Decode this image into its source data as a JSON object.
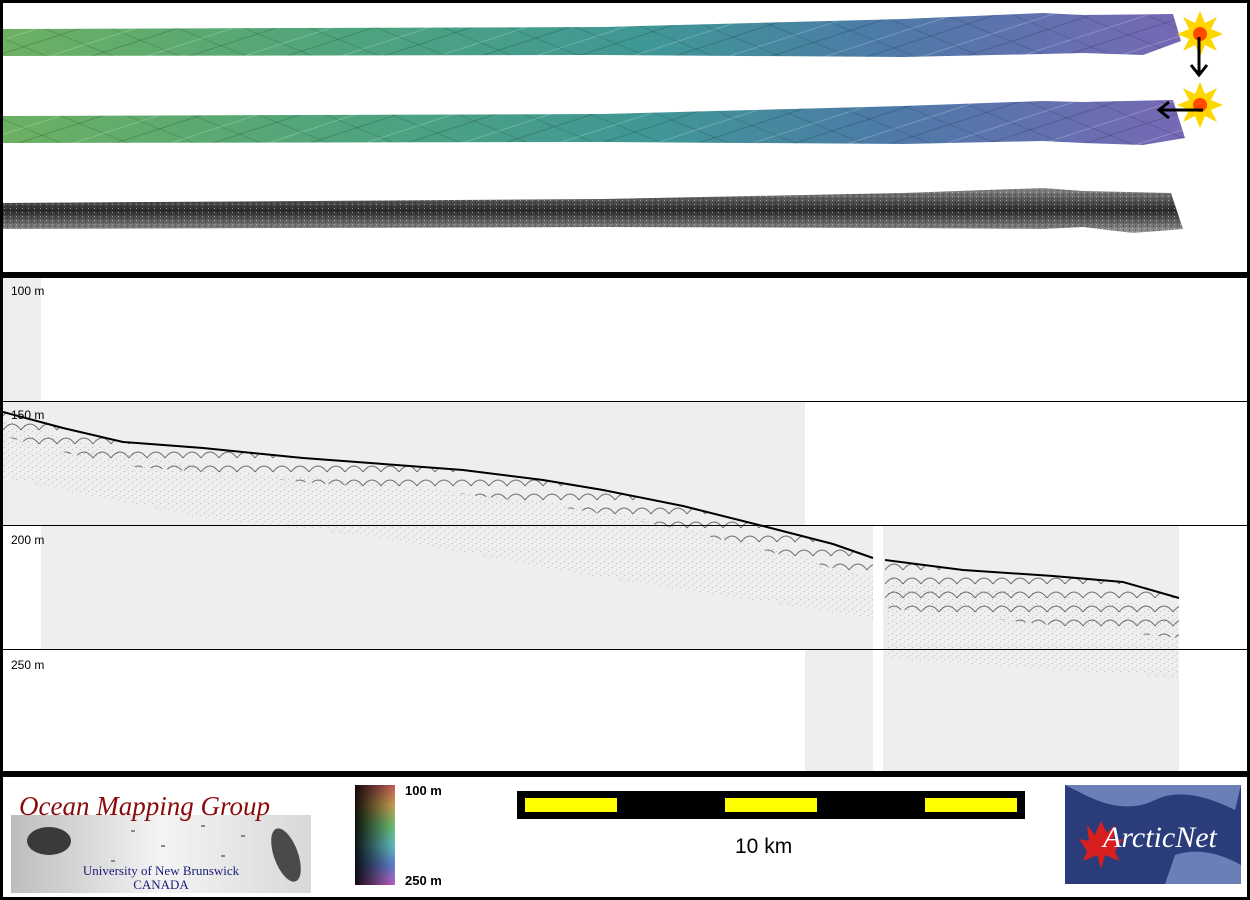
{
  "title": "",
  "depth_axis": {
    "labels": [
      "100 m",
      "150 m",
      "200 m",
      "250 m"
    ],
    "unit": "m"
  },
  "legend": {
    "colorbar_min": "100 m",
    "colorbar_max": "250 m"
  },
  "scale_bar": {
    "label": "10 km"
  },
  "logos": {
    "omg_title": "Ocean Mapping Group",
    "omg_subtitle_1": "University of New Brunswick",
    "omg_subtitle_2": "CANADA",
    "arcticnet": "ArcticNet"
  },
  "colors": {
    "swath_west": "#6fae66",
    "swath_mid": "#3f9a98",
    "swath_east": "#7a6fb8",
    "scale_yellow": "#ffff00",
    "omg_red": "#8b0a0a"
  }
}
